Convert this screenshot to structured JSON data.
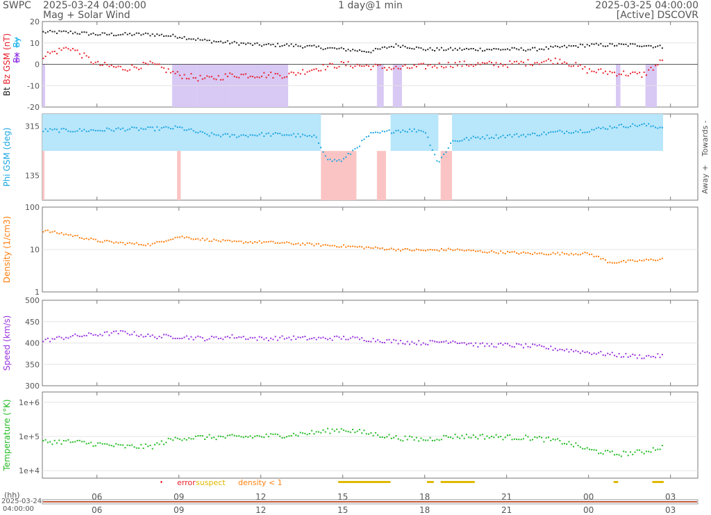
{
  "header": {
    "org": "SWPC",
    "start_time": "2025-03-24 04:00:00",
    "plot_name": "Mag + Solar Wind",
    "span": "1 day@1 min",
    "end_time": "2025-03-25 04:00:00",
    "source": "[Active] DSCOVR"
  },
  "colors": {
    "bt": "#222222",
    "bz": "#e8202a",
    "bx": "#8b2be2",
    "by": "#13b0e8",
    "phi": "#1aa6e0",
    "density": "#ff7f0e",
    "speed": "#9932e0",
    "temperature": "#22bb22",
    "shade_purple": "#d8c8f4",
    "shade_blue": "#b8e6fb",
    "shade_pink": "#fbc4c4",
    "error": "#e8202a",
    "suspect": "#e0b800",
    "density_lt1": "#ff7f0e"
  },
  "chart_data": [
    {
      "type": "scatter",
      "id": "mag",
      "ylabel": "Bt  Bz GSM (nT)",
      "ylim": [
        -20,
        20
      ],
      "yticks": [
        "20",
        "10",
        "0",
        "-10",
        "-20"
      ],
      "legend": [
        "Bt",
        "Bz GSM (nT)",
        "Bx",
        "By"
      ],
      "series": [
        {
          "name": "Bt",
          "x": [
            "04:00",
            "05:00",
            "06:00",
            "07:00",
            "08:00",
            "09:00",
            "10:00",
            "11:00",
            "12:00",
            "13:00",
            "14:00",
            "15:00",
            "16:00",
            "17:00",
            "18:00",
            "19:00",
            "20:00",
            "21:00",
            "22:00",
            "23:00",
            "00:00",
            "01:00",
            "02:00",
            "02:45"
          ],
          "values": [
            15,
            15,
            14,
            14,
            14,
            13,
            11,
            10,
            9,
            9,
            8,
            7,
            6,
            9,
            7,
            7,
            7,
            7,
            7,
            8,
            9,
            9,
            9,
            8
          ]
        },
        {
          "name": "Bz GSM (nT)",
          "x": [
            "04:00",
            "05:00",
            "06:00",
            "07:00",
            "08:00",
            "09:00",
            "10:00",
            "11:00",
            "12:00",
            "13:00",
            "14:00",
            "15:00",
            "16:00",
            "17:00",
            "18:00",
            "19:00",
            "20:00",
            "21:00",
            "22:00",
            "23:00",
            "00:00",
            "01:00",
            "02:00",
            "02:45"
          ],
          "values": [
            4,
            8,
            0,
            -2,
            0,
            -5,
            -7,
            -5,
            -5,
            -5,
            -2,
            0,
            -1,
            -2,
            -1,
            0,
            0,
            0,
            1,
            2,
            -3,
            -4,
            -5,
            2
          ]
        }
      ]
    },
    {
      "type": "scatter",
      "id": "phi",
      "ylabel": "Phi GSM (deg)",
      "ylim": [
        45,
        360
      ],
      "yticks": [
        "315",
        "135"
      ],
      "right_labels": [
        "Away +",
        "Towards -"
      ],
      "series": [
        {
          "name": "Phi GSM",
          "x": [
            "04:00",
            "05:00",
            "06:00",
            "07:00",
            "08:00",
            "09:00",
            "10:00",
            "11:00",
            "12:00",
            "13:00",
            "14:00",
            "14:30",
            "15:00",
            "16:00",
            "17:00",
            "18:00",
            "18:30",
            "19:00",
            "20:00",
            "21:00",
            "22:00",
            "23:00",
            "00:00",
            "01:00",
            "02:00",
            "02:45"
          ],
          "values": [
            300,
            300,
            300,
            305,
            305,
            310,
            285,
            280,
            285,
            285,
            275,
            190,
            190,
            285,
            300,
            300,
            180,
            260,
            275,
            280,
            285,
            295,
            300,
            315,
            320,
            310
          ]
        }
      ]
    },
    {
      "type": "scatter",
      "id": "density",
      "ylabel": "Density (1/cm3)",
      "ylim": [
        1,
        100
      ],
      "scale": "log",
      "yticks": [
        "100",
        "10",
        "1"
      ],
      "series": [
        {
          "name": "Density",
          "x": [
            "04:00",
            "05:00",
            "06:00",
            "07:00",
            "08:00",
            "09:00",
            "10:00",
            "11:00",
            "12:00",
            "13:00",
            "14:00",
            "15:00",
            "16:00",
            "17:00",
            "18:00",
            "19:00",
            "20:00",
            "21:00",
            "22:00",
            "23:00",
            "00:00",
            "00:45",
            "01:00",
            "02:00",
            "02:45"
          ],
          "values": [
            28,
            22,
            16,
            14,
            13,
            20,
            17,
            15,
            15,
            14,
            13,
            12,
            11,
            10,
            9.5,
            10,
            9,
            8.5,
            8,
            8,
            8,
            5,
            5,
            5.5,
            6
          ]
        }
      ]
    },
    {
      "type": "scatter",
      "id": "speed",
      "ylabel": "Speed (km/s)",
      "ylim": [
        300,
        500
      ],
      "yticks": [
        "500",
        "450",
        "400",
        "350",
        "300"
      ],
      "series": [
        {
          "name": "Speed",
          "x": [
            "04:00",
            "05:00",
            "06:00",
            "07:00",
            "08:00",
            "09:00",
            "10:00",
            "11:00",
            "12:00",
            "13:00",
            "14:00",
            "15:00",
            "16:00",
            "17:00",
            "18:00",
            "19:00",
            "20:00",
            "21:00",
            "22:00",
            "23:00",
            "00:00",
            "01:00",
            "02:00",
            "02:45"
          ],
          "values": [
            405,
            415,
            420,
            425,
            415,
            415,
            410,
            415,
            410,
            412,
            410,
            412,
            408,
            403,
            400,
            405,
            395,
            395,
            392,
            385,
            378,
            372,
            368,
            370
          ]
        }
      ]
    },
    {
      "type": "scatter",
      "id": "temperature",
      "ylabel": "Temperature (°K)",
      "ylim": [
        6000,
        2000000
      ],
      "scale": "log",
      "yticks": [
        "1e+6",
        "1e+5",
        "1e+4"
      ],
      "series": [
        {
          "name": "Temperature",
          "x": [
            "04:00",
            "05:00",
            "06:00",
            "07:00",
            "08:00",
            "09:00",
            "10:00",
            "11:00",
            "12:00",
            "13:00",
            "14:00",
            "15:00",
            "16:00",
            "17:00",
            "18:00",
            "19:00",
            "20:00",
            "21:00",
            "22:00",
            "23:00",
            "00:00",
            "01:00",
            "02:00",
            "02:45"
          ],
          "values": [
            70000,
            70000,
            60000,
            50000,
            50000,
            90000,
            95000,
            95000,
            100000,
            110000,
            130000,
            160000,
            120000,
            90000,
            80000,
            100000,
            100000,
            95000,
            90000,
            70000,
            40000,
            30000,
            35000,
            50000
          ]
        }
      ]
    }
  ],
  "flags": {
    "error": "error",
    "suspect": "suspect",
    "density_lt1": "density < 1"
  },
  "time_axis": {
    "hh_label": "(hh)",
    "ticks": [
      "06",
      "09",
      "12",
      "15",
      "18",
      "21",
      "00",
      "03"
    ],
    "start_date": "2025-03-24",
    "start_clock": "04:00:00"
  }
}
